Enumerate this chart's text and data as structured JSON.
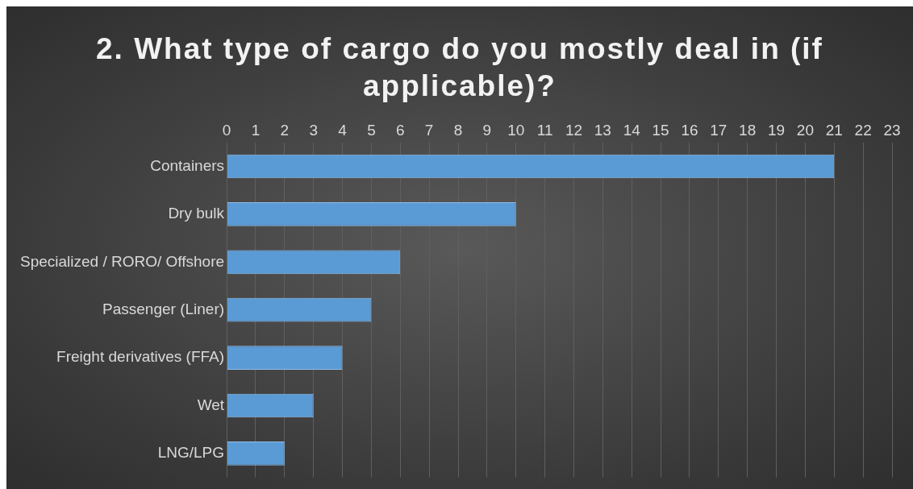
{
  "chart_data": {
    "type": "bar",
    "orientation": "horizontal",
    "title": "2. What type of cargo do you mostly deal in (if applicable)?",
    "categories": [
      "Containers",
      "Dry bulk",
      "Specialized / RORO/ Offshore",
      "Passenger (Liner)",
      "Freight derivatives (FFA)",
      "Wet",
      "LNG/LPG"
    ],
    "values": [
      21,
      10,
      6,
      5,
      4,
      3,
      2
    ],
    "color": "#5b9bd5",
    "xlim": [
      0,
      23
    ],
    "xticks": [
      0,
      1,
      2,
      3,
      4,
      5,
      6,
      7,
      8,
      9,
      10,
      11,
      12,
      13,
      14,
      15,
      16,
      17,
      18,
      19,
      20,
      21,
      22,
      23
    ],
    "grid": "x",
    "legend": false
  }
}
